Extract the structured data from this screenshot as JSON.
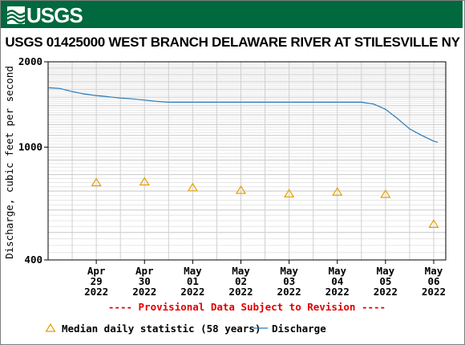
{
  "header": {
    "logo_text": "USGS"
  },
  "chart_data": {
    "type": "line",
    "title": "USGS 01425000 WEST BRANCH DELAWARE RIVER AT STILESVILLE NY",
    "ylabel": "Discharge, cubic feet per second",
    "yscale": "log",
    "ylim": [
      400,
      2000
    ],
    "yticks": [
      {
        "value": 400,
        "label": "400"
      },
      {
        "value": 1000,
        "label": "1000"
      },
      {
        "value": 2000,
        "label": "2000"
      }
    ],
    "xlim": [
      "2022-04-28T12:00",
      "2022-05-06T18:00"
    ],
    "xticks": [
      {
        "date": "2022-04-29T12:00",
        "lines": [
          "Apr",
          "29",
          "2022"
        ]
      },
      {
        "date": "2022-04-30T12:00",
        "lines": [
          "Apr",
          "30",
          "2022"
        ]
      },
      {
        "date": "2022-05-01T12:00",
        "lines": [
          "May",
          "01",
          "2022"
        ]
      },
      {
        "date": "2022-05-02T12:00",
        "lines": [
          "May",
          "02",
          "2022"
        ]
      },
      {
        "date": "2022-05-03T12:00",
        "lines": [
          "May",
          "03",
          "2022"
        ]
      },
      {
        "date": "2022-05-04T12:00",
        "lines": [
          "May",
          "04",
          "2022"
        ]
      },
      {
        "date": "2022-05-05T12:00",
        "lines": [
          "May",
          "05",
          "2022"
        ]
      },
      {
        "date": "2022-05-06T12:00",
        "lines": [
          "May",
          "06",
          "2022"
        ]
      }
    ],
    "grid": true,
    "legend_position": "bottom",
    "provisional_note": "---- Provisional Data Subject to Revision ----",
    "series": [
      {
        "name": "Discharge",
        "kind": "line",
        "color": "#1f77b4",
        "points": [
          {
            "t": "2022-04-28T12:00",
            "y": 1620
          },
          {
            "t": "2022-04-28T18:00",
            "y": 1610
          },
          {
            "t": "2022-04-29T00:00",
            "y": 1570
          },
          {
            "t": "2022-04-29T06:00",
            "y": 1540
          },
          {
            "t": "2022-04-29T12:00",
            "y": 1520
          },
          {
            "t": "2022-04-29T18:00",
            "y": 1505
          },
          {
            "t": "2022-04-30T00:00",
            "y": 1490
          },
          {
            "t": "2022-04-30T06:00",
            "y": 1480
          },
          {
            "t": "2022-04-30T12:00",
            "y": 1465
          },
          {
            "t": "2022-04-30T18:00",
            "y": 1450
          },
          {
            "t": "2022-05-01T00:00",
            "y": 1440
          },
          {
            "t": "2022-05-02T00:00",
            "y": 1440
          },
          {
            "t": "2022-05-03T00:00",
            "y": 1440
          },
          {
            "t": "2022-05-04T00:00",
            "y": 1440
          },
          {
            "t": "2022-05-05T00:00",
            "y": 1440
          },
          {
            "t": "2022-05-05T06:00",
            "y": 1420
          },
          {
            "t": "2022-05-05T12:00",
            "y": 1360
          },
          {
            "t": "2022-05-05T18:00",
            "y": 1260
          },
          {
            "t": "2022-05-06T00:00",
            "y": 1160
          },
          {
            "t": "2022-05-06T06:00",
            "y": 1100
          },
          {
            "t": "2022-05-06T12:00",
            "y": 1050
          },
          {
            "t": "2022-05-06T14:00",
            "y": 1040
          }
        ]
      },
      {
        "name": "Median daily statistic (58 years)",
        "kind": "marker",
        "marker": "triangle",
        "color": "#e69f00",
        "points": [
          {
            "t": "2022-04-29T12:00",
            "y": 750
          },
          {
            "t": "2022-04-30T12:00",
            "y": 755
          },
          {
            "t": "2022-05-01T12:00",
            "y": 720
          },
          {
            "t": "2022-05-02T12:00",
            "y": 705
          },
          {
            "t": "2022-05-03T12:00",
            "y": 685
          },
          {
            "t": "2022-05-04T12:00",
            "y": 695
          },
          {
            "t": "2022-05-05T12:00",
            "y": 682
          },
          {
            "t": "2022-05-06T12:00",
            "y": 535
          }
        ]
      }
    ]
  }
}
